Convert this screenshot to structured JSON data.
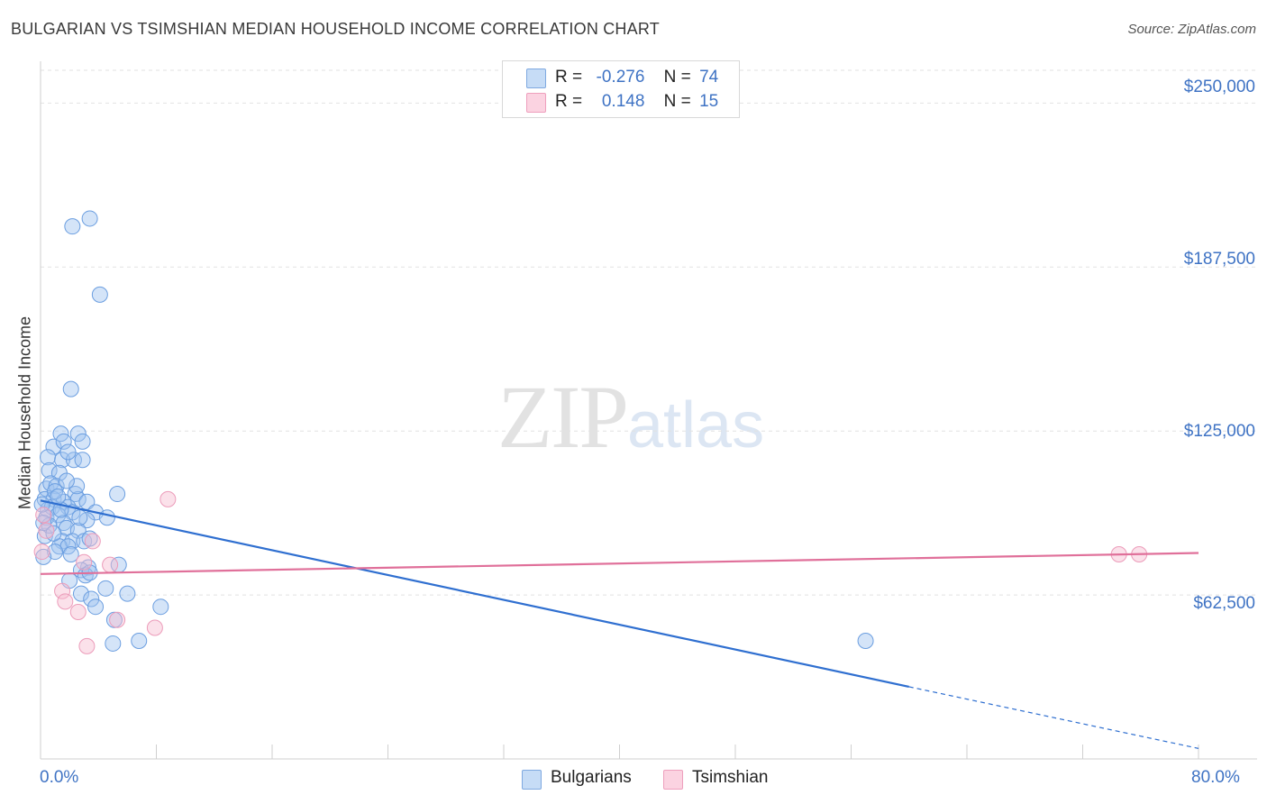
{
  "header": {
    "title": "BULGARIAN VS TSIMSHIAN MEDIAN HOUSEHOLD INCOME CORRELATION CHART",
    "source": "Source: ZipAtlas.com"
  },
  "watermark": {
    "zip": "ZIP",
    "atlas": "atlas"
  },
  "stats": {
    "r_label": "R =",
    "n_label": "N =",
    "rows": [
      {
        "r": "-0.276",
        "n": "74",
        "color": "#a8c8f0"
      },
      {
        "r": "0.148",
        "n": "15",
        "color": "#f7bcd0"
      }
    ]
  },
  "legend": {
    "items": [
      {
        "label": "Bulgarians",
        "color": "#a8c8f0"
      },
      {
        "label": "Tsimshian",
        "color": "#f7bcd0"
      }
    ]
  },
  "chart_data": {
    "type": "scatter",
    "title": "BULGARIAN VS TSIMSHIAN MEDIAN HOUSEHOLD INCOME CORRELATION CHART",
    "xlabel": "",
    "ylabel": "Median Household Income",
    "xlim": [
      0,
      80
    ],
    "ylim": [
      0,
      262500
    ],
    "x_tick_labels": [
      "0.0%",
      "80.0%"
    ],
    "y_ticks": [
      62500,
      125000,
      187500,
      250000
    ],
    "y_tick_labels": [
      "$62,500",
      "$125,000",
      "$187,500",
      "$250,000"
    ],
    "grid": "horizontal dashed",
    "legend_position": "bottom-center",
    "colors": {
      "Bulgarians": "#4a86d8",
      "Tsimshian": "#e0709a"
    },
    "series": [
      {
        "name": "Bulgarians",
        "color": "#4a86d8",
        "trend": {
          "x0": 0,
          "y0": 98500,
          "x1": 60,
          "y1": 27500,
          "dash_to_x": 80,
          "dash_to_y": 4000
        },
        "points": [
          [
            2.2,
            203000
          ],
          [
            3.4,
            206000
          ],
          [
            4.1,
            177000
          ],
          [
            2.1,
            141000
          ],
          [
            1.4,
            124000
          ],
          [
            2.6,
            124000
          ],
          [
            0.9,
            119000
          ],
          [
            1.6,
            121000
          ],
          [
            2.9,
            121000
          ],
          [
            0.5,
            115000
          ],
          [
            1.5,
            114000
          ],
          [
            2.3,
            114000
          ],
          [
            2.9,
            114000
          ],
          [
            0.6,
            110000
          ],
          [
            1.3,
            109000
          ],
          [
            1.9,
            117000
          ],
          [
            0.4,
            103000
          ],
          [
            0.7,
            105000
          ],
          [
            1.1,
            104000
          ],
          [
            2.4,
            101000
          ],
          [
            5.3,
            101000
          ],
          [
            0.3,
            99000
          ],
          [
            0.9,
            99000
          ],
          [
            1.6,
            98000
          ],
          [
            2.6,
            99000
          ],
          [
            3.2,
            98000
          ],
          [
            0.5,
            95000
          ],
          [
            0.8,
            96000
          ],
          [
            1.9,
            96000
          ],
          [
            2.2,
            94000
          ],
          [
            3.8,
            94000
          ],
          [
            0.4,
            92000
          ],
          [
            1.2,
            93000
          ],
          [
            1.6,
            90000
          ],
          [
            4.6,
            92000
          ],
          [
            3.2,
            91000
          ],
          [
            1.8,
            88000
          ],
          [
            2.6,
            87000
          ],
          [
            0.3,
            85000
          ],
          [
            1.5,
            83000
          ],
          [
            2.2,
            83000
          ],
          [
            3.0,
            83000
          ],
          [
            3.4,
            84000
          ],
          [
            1.3,
            81000
          ],
          [
            1.9,
            81000
          ],
          [
            1.0,
            79000
          ],
          [
            2.1,
            78000
          ],
          [
            0.2,
            77000
          ],
          [
            5.4,
            74000
          ],
          [
            3.3,
            73000
          ],
          [
            2.8,
            72000
          ],
          [
            3.1,
            70000
          ],
          [
            2.0,
            68000
          ],
          [
            3.4,
            71000
          ],
          [
            4.5,
            65000
          ],
          [
            2.8,
            63000
          ],
          [
            6.0,
            63000
          ],
          [
            3.5,
            61000
          ],
          [
            3.8,
            58000
          ],
          [
            8.3,
            58000
          ],
          [
            5.1,
            53000
          ],
          [
            5.0,
            44000
          ],
          [
            6.8,
            45000
          ],
          [
            57.0,
            45000
          ],
          [
            0.1,
            97000
          ],
          [
            0.6,
            89000
          ],
          [
            1.0,
            102000
          ],
          [
            1.4,
            95000
          ],
          [
            2.5,
            104000
          ],
          [
            0.2,
            90000
          ],
          [
            1.8,
            106000
          ],
          [
            0.9,
            86000
          ],
          [
            2.7,
            92000
          ],
          [
            1.2,
            100000
          ]
        ]
      },
      {
        "name": "Tsimshian",
        "color": "#e0709a",
        "trend": {
          "x0": 0,
          "y0": 70500,
          "x1": 80,
          "y1": 78500
        },
        "points": [
          [
            8.8,
            99000
          ],
          [
            0.2,
            93000
          ],
          [
            0.4,
            87000
          ],
          [
            3.6,
            83000
          ],
          [
            3.0,
            75000
          ],
          [
            4.8,
            74000
          ],
          [
            1.5,
            64000
          ],
          [
            1.7,
            60000
          ],
          [
            2.6,
            56000
          ],
          [
            5.3,
            53000
          ],
          [
            7.9,
            50000
          ],
          [
            3.2,
            43000
          ],
          [
            74.5,
            78000
          ],
          [
            75.9,
            78000
          ],
          [
            0.1,
            79000
          ]
        ]
      }
    ]
  }
}
